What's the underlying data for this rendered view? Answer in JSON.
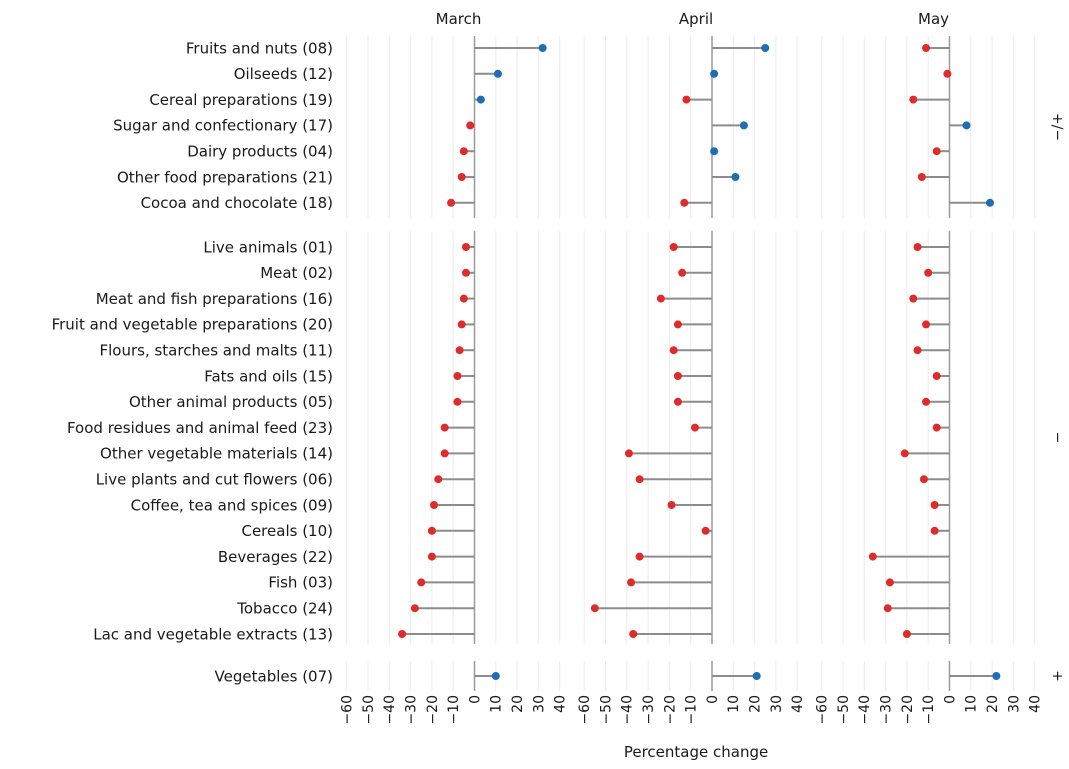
{
  "chart_data": {
    "type": "lollipop",
    "xlabel": "Percentage change",
    "xlim": [
      -60,
      45
    ],
    "xticks": [
      -60,
      -50,
      -40,
      -30,
      -20,
      -10,
      0,
      10,
      20,
      30,
      40
    ],
    "grid": true,
    "panels": [
      "March",
      "April",
      "May"
    ],
    "groups": [
      {
        "label": "−/+",
        "categories": [
          "Fruits and nuts (08)",
          "Oilseeds (12)",
          "Cereal preparations (19)",
          "Sugar and confectionary (17)",
          "Dairy products (04)",
          "Other food preparations (21)",
          "Cocoa and chocolate (18)"
        ]
      },
      {
        "label": "−",
        "categories": [
          "Live animals (01)",
          "Meat (02)",
          "Meat and fish preparations (16)",
          "Fruit and vegetable preparations (20)",
          "Flours, starches and malts (11)",
          "Fats and oils (15)",
          "Other animal products (05)",
          "Food residues and animal feed (23)",
          "Other vegetable materials (14)",
          "Live plants and cut flowers (06)",
          "Coffee, tea and spices (09)",
          "Cereals (10)",
          "Beverages (22)",
          "Fish (03)",
          "Tobacco (24)",
          "Lac and vegetable extracts (13)"
        ]
      },
      {
        "label": "+",
        "categories": [
          "Vegetables (07)"
        ]
      }
    ],
    "series": [
      {
        "name": "March",
        "values": [
          32,
          11,
          3,
          -2,
          -5,
          -6,
          -11,
          -4,
          -4,
          -5,
          -6,
          -7,
          -8,
          -8,
          -14,
          -14,
          -17,
          -19,
          -20,
          -20,
          -25,
          -28,
          -34,
          10
        ]
      },
      {
        "name": "April",
        "values": [
          25,
          1,
          -12,
          15,
          1,
          11,
          -13,
          -18,
          -14,
          -24,
          -16,
          -18,
          -16,
          -16,
          -8,
          -39,
          -34,
          -19,
          -3,
          -34,
          -38,
          -55,
          -37,
          21
        ]
      },
      {
        "name": "May",
        "values": [
          -11,
          -1,
          -17,
          8,
          -6,
          -13,
          19,
          -15,
          -10,
          -17,
          -11,
          -15,
          -6,
          -11,
          -6,
          -21,
          -12,
          -7,
          -7,
          -36,
          -28,
          -29,
          -20,
          22
        ]
      }
    ],
    "colors": {
      "positive": "#1f6db5",
      "negative": "#e02b2b",
      "stem": "#8c8c8c",
      "zero_line": "#9a9a9a",
      "grid": "#ececec"
    }
  }
}
